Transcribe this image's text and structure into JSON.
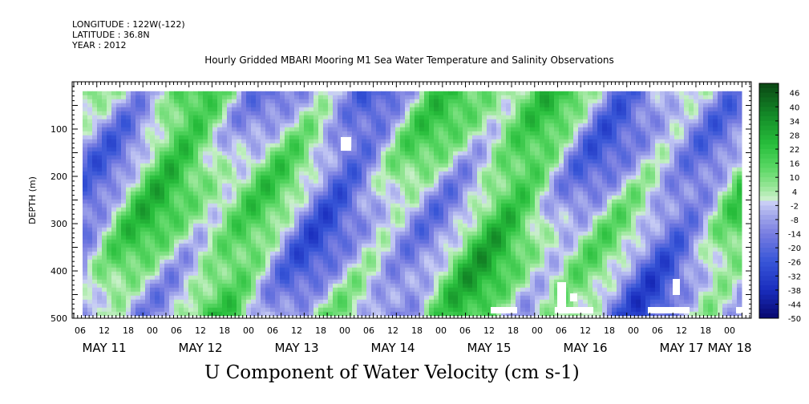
{
  "header": {
    "longitude": "LONGITUDE : 122W(-122)",
    "latitude": "LATITUDE : 36.8N",
    "year": "YEAR : 2012",
    "title": "Hourly Gridded MBARI Mooring M1 Sea Water Temperature and Salinity Observations"
  },
  "chart_data": {
    "type": "heatmap",
    "title": "Hourly Gridded MBARI Mooring M1 Sea Water Temperature and Salinity Observations",
    "xlabel": "U Component of Water Velocity (cm s-1)",
    "ylabel": "DEPTH (m)",
    "y_reversed": true,
    "ylim": [
      0,
      500
    ],
    "y_ticks": [
      100,
      200,
      300,
      400,
      500
    ],
    "x_hours": [
      {
        "label": "06",
        "h": 6
      },
      {
        "label": "12",
        "h": 12
      },
      {
        "label": "18",
        "h": 18
      },
      {
        "label": "00",
        "h": 24
      },
      {
        "label": "06",
        "h": 30
      },
      {
        "label": "12",
        "h": 36
      },
      {
        "label": "18",
        "h": 42
      },
      {
        "label": "00",
        "h": 48
      },
      {
        "label": "06",
        "h": 54
      },
      {
        "label": "12",
        "h": 60
      },
      {
        "label": "18",
        "h": 66
      },
      {
        "label": "00",
        "h": 72
      },
      {
        "label": "06",
        "h": 78
      },
      {
        "label": "12",
        "h": 84
      },
      {
        "label": "18",
        "h": 90
      },
      {
        "label": "00",
        "h": 96
      },
      {
        "label": "06",
        "h": 102
      },
      {
        "label": "12",
        "h": 108
      },
      {
        "label": "18",
        "h": 114
      },
      {
        "label": "00",
        "h": 120
      },
      {
        "label": "06",
        "h": 126
      },
      {
        "label": "12",
        "h": 132
      },
      {
        "label": "18",
        "h": 138
      },
      {
        "label": "00",
        "h": 144
      },
      {
        "label": "06",
        "h": 150
      },
      {
        "label": "12",
        "h": 156
      },
      {
        "label": "18",
        "h": 162
      },
      {
        "label": "00",
        "h": 168
      }
    ],
    "x_days": [
      {
        "label": "MAY 11",
        "h": 12
      },
      {
        "label": "MAY 12",
        "h": 36
      },
      {
        "label": "MAY 13",
        "h": 60
      },
      {
        "label": "MAY 14",
        "h": 84
      },
      {
        "label": "MAY 15",
        "h": 108
      },
      {
        "label": "MAY 16",
        "h": 132
      },
      {
        "label": "MAY 17",
        "h": 156
      },
      {
        "label": "MAY 18",
        "h": 168
      }
    ],
    "colorbar": {
      "min": -50,
      "max": 50,
      "labels": [
        46,
        40,
        34,
        28,
        22,
        16,
        10,
        4,
        -2,
        -8,
        -14,
        -20,
        -26,
        -32,
        -38,
        -44,
        -50
      ]
    },
    "grid": false,
    "data_extent": {
      "hours": [
        6,
        168
      ],
      "depth": [
        20,
        490
      ]
    },
    "note_pattern": "alternating bands of positive (green) and negative (blue) velocity; values roughly between -26 and +34 cm/s"
  }
}
